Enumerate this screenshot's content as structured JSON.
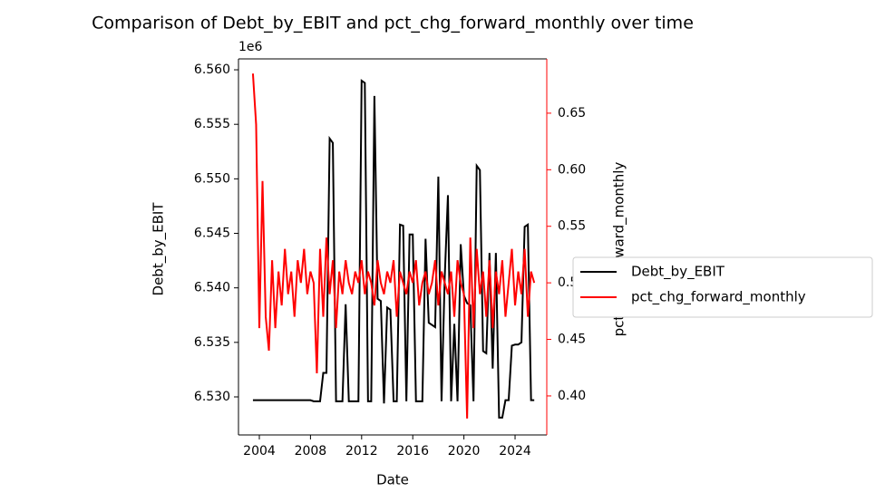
{
  "chart_data": {
    "type": "line",
    "title": "Comparison of Debt_by_EBIT and pct_chg_forward_monthly over time",
    "x_label": "Date",
    "y_label": "Debt_by_EBIT",
    "y2_label": "pct_chg_forward_monthly",
    "y_offset_label": "1e6",
    "x": [
      2003.5,
      2003.75,
      2004,
      2004.25,
      2004.5,
      2004.75,
      2005,
      2005.25,
      2005.5,
      2005.75,
      2006,
      2006.25,
      2006.5,
      2006.75,
      2007,
      2007.25,
      2007.5,
      2007.75,
      2008,
      2008.25,
      2008.5,
      2008.75,
      2009,
      2009.25,
      2009.5,
      2009.75,
      2010,
      2010.25,
      2010.5,
      2010.75,
      2011,
      2011.25,
      2011.5,
      2011.75,
      2012,
      2012.25,
      2012.5,
      2012.75,
      2013,
      2013.25,
      2013.5,
      2013.75,
      2014,
      2014.25,
      2014.5,
      2014.75,
      2015,
      2015.25,
      2015.5,
      2015.75,
      2016,
      2016.25,
      2016.5,
      2016.75,
      2017,
      2017.25,
      2017.5,
      2017.75,
      2018,
      2018.25,
      2018.5,
      2018.75,
      2019,
      2019.25,
      2019.5,
      2019.75,
      2020,
      2020.25,
      2020.5,
      2020.75,
      2021,
      2021.25,
      2021.5,
      2021.75,
      2022,
      2022.25,
      2022.5,
      2022.75,
      2023,
      2023.25,
      2023.5,
      2023.75,
      2024,
      2024.25,
      2024.5,
      2024.75,
      2025,
      2025.25,
      2025.5
    ],
    "series": [
      {
        "name": "Debt_by_EBIT",
        "color": "#000000",
        "axis": "y",
        "values": [
          6.5297,
          6.5297,
          6.5297,
          6.5297,
          6.5297,
          6.5297,
          6.5297,
          6.5297,
          6.5297,
          6.5297,
          6.5297,
          6.5297,
          6.5297,
          6.5297,
          6.5297,
          6.5297,
          6.5297,
          6.5297,
          6.5297,
          6.5296,
          6.5296,
          6.5296,
          6.5322,
          6.5322,
          6.5537,
          6.5533,
          6.5296,
          6.5296,
          6.5296,
          6.5385,
          6.5296,
          6.5296,
          6.5296,
          6.5296,
          6.559,
          6.5588,
          6.5296,
          6.5296,
          6.5576,
          6.539,
          6.5388,
          6.5294,
          6.5382,
          6.538,
          6.5296,
          6.5296,
          6.5458,
          6.5457,
          6.5296,
          6.5449,
          6.5449,
          6.5296,
          6.5296,
          6.5296,
          6.5445,
          6.5368,
          6.5366,
          6.5364,
          6.5502,
          6.5296,
          6.541,
          6.5485,
          6.5296,
          6.5367,
          6.5296,
          6.544,
          6.5393,
          6.5386,
          6.5384,
          6.5296,
          6.5512,
          6.5508,
          6.5342,
          6.534,
          6.5432,
          6.5326,
          6.5432,
          6.5281,
          6.5281,
          6.5297,
          6.5297,
          6.5347,
          6.5348,
          6.5348,
          6.535,
          6.5456,
          6.5458,
          6.5297,
          6.5297
        ]
      },
      {
        "name": "pct_chg_forward_monthly",
        "color": "#ff0000",
        "axis": "y2",
        "values": [
          0.685,
          0.64,
          0.46,
          0.59,
          0.47,
          0.44,
          0.52,
          0.46,
          0.51,
          0.48,
          0.53,
          0.49,
          0.51,
          0.47,
          0.52,
          0.5,
          0.53,
          0.49,
          0.51,
          0.5,
          0.42,
          0.53,
          0.47,
          0.54,
          0.49,
          0.52,
          0.46,
          0.51,
          0.49,
          0.52,
          0.5,
          0.49,
          0.51,
          0.5,
          0.52,
          0.49,
          0.51,
          0.5,
          0.48,
          0.52,
          0.5,
          0.49,
          0.51,
          0.5,
          0.52,
          0.47,
          0.51,
          0.5,
          0.49,
          0.51,
          0.5,
          0.52,
          0.48,
          0.5,
          0.51,
          0.49,
          0.5,
          0.52,
          0.48,
          0.51,
          0.5,
          0.49,
          0.51,
          0.47,
          0.52,
          0.5,
          0.49,
          0.38,
          0.54,
          0.46,
          0.53,
          0.49,
          0.51,
          0.47,
          0.52,
          0.46,
          0.51,
          0.49,
          0.52,
          0.47,
          0.5,
          0.53,
          0.48,
          0.51,
          0.49,
          0.53,
          0.47,
          0.51,
          0.5
        ]
      }
    ],
    "xlim": [
      2002.37,
      2026.48
    ],
    "xticks": [
      2004,
      2008,
      2012,
      2016,
      2020,
      2024
    ],
    "ylim": [
      6.52651,
      6.561
    ],
    "yticks": [
      {
        "value": 6.53,
        "label": "6.530"
      },
      {
        "value": 6.535,
        "label": "6.535"
      },
      {
        "value": 6.54,
        "label": "6.540"
      },
      {
        "value": 6.545,
        "label": "6.545"
      },
      {
        "value": 6.55,
        "label": "6.550"
      },
      {
        "value": 6.555,
        "label": "6.555"
      },
      {
        "value": 6.56,
        "label": "6.560"
      }
    ],
    "y2lim": [
      0.3655,
      0.698
    ],
    "y2ticks": [
      {
        "value": 0.4,
        "label": "0.40"
      },
      {
        "value": 0.45,
        "label": "0.45"
      },
      {
        "value": 0.5,
        "label": "0.50"
      },
      {
        "value": 0.55,
        "label": "0.55"
      },
      {
        "value": 0.6,
        "label": "0.60"
      },
      {
        "value": 0.65,
        "label": "0.65"
      }
    ],
    "y2_color": "#ff0000",
    "legend": "outside right",
    "grid": false
  }
}
